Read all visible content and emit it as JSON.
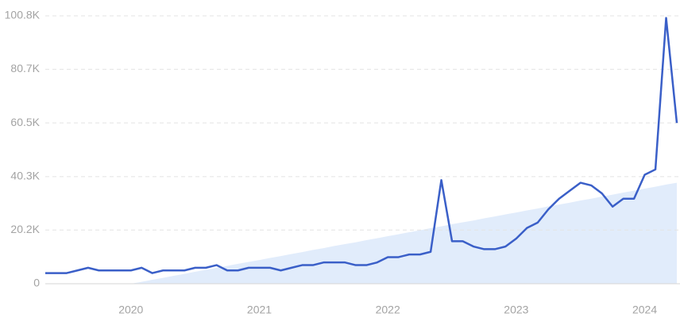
{
  "chart_data": {
    "type": "line",
    "categories": [
      null,
      null,
      null,
      null,
      null,
      null,
      null,
      null,
      "2020",
      null,
      null,
      null,
      null,
      null,
      null,
      null,
      null,
      null,
      null,
      null,
      "2021",
      null,
      null,
      null,
      null,
      null,
      null,
      null,
      null,
      null,
      null,
      null,
      "2022",
      null,
      null,
      null,
      null,
      null,
      null,
      null,
      null,
      null,
      null,
      null,
      "2023",
      null,
      null,
      null,
      null,
      null,
      null,
      null,
      null,
      null,
      null,
      null,
      "2024",
      null,
      null,
      null
    ],
    "series": [
      {
        "color": "#3a5fc8",
        "values": [
          4000,
          4000,
          4000,
          5000,
          6000,
          5000,
          5000,
          5000,
          5000,
          6000,
          4000,
          5000,
          5000,
          5000,
          6000,
          6000,
          7000,
          5000,
          5000,
          6000,
          6000,
          6000,
          5000,
          6000,
          7000,
          7000,
          8000,
          8000,
          8000,
          7000,
          7000,
          8000,
          10000,
          10000,
          11000,
          11000,
          12000,
          39000,
          16000,
          16000,
          14000,
          13000,
          13000,
          14000,
          17000,
          21000,
          23000,
          28000,
          32000,
          35000,
          38000,
          37000,
          34000,
          29000,
          32000,
          32000,
          41000,
          43000,
          100000,
          60500
        ]
      }
    ],
    "trend": {
      "color": "#e1ecfb",
      "values": [
        null,
        null,
        null,
        null,
        null,
        null,
        null,
        null,
        0,
        700,
        1500,
        2200,
        3000,
        3700,
        4500,
        5200,
        6000,
        6700,
        7500,
        8200,
        8900,
        9700,
        10400,
        11200,
        11900,
        12700,
        13400,
        14200,
        14900,
        15600,
        16400,
        17100,
        17900,
        18600,
        19400,
        20100,
        20900,
        21600,
        22400,
        23100,
        23800,
        24600,
        25300,
        26100,
        26800,
        27600,
        28300,
        29100,
        29800,
        30500,
        31300,
        32000,
        32800,
        33500,
        34300,
        35000,
        35800,
        36500,
        37300,
        38000
      ]
    },
    "ylim": [
      0,
      100800
    ],
    "yticks": [
      0,
      {
        "value": 20200,
        "label": "20.2K"
      },
      {
        "value": 40300,
        "label": "40.3K"
      },
      {
        "value": 60500,
        "label": "60.5K"
      },
      {
        "value": 80700,
        "label": "80.7K"
      },
      {
        "value": 100800,
        "label": "100.8K"
      }
    ],
    "grid": true
  }
}
